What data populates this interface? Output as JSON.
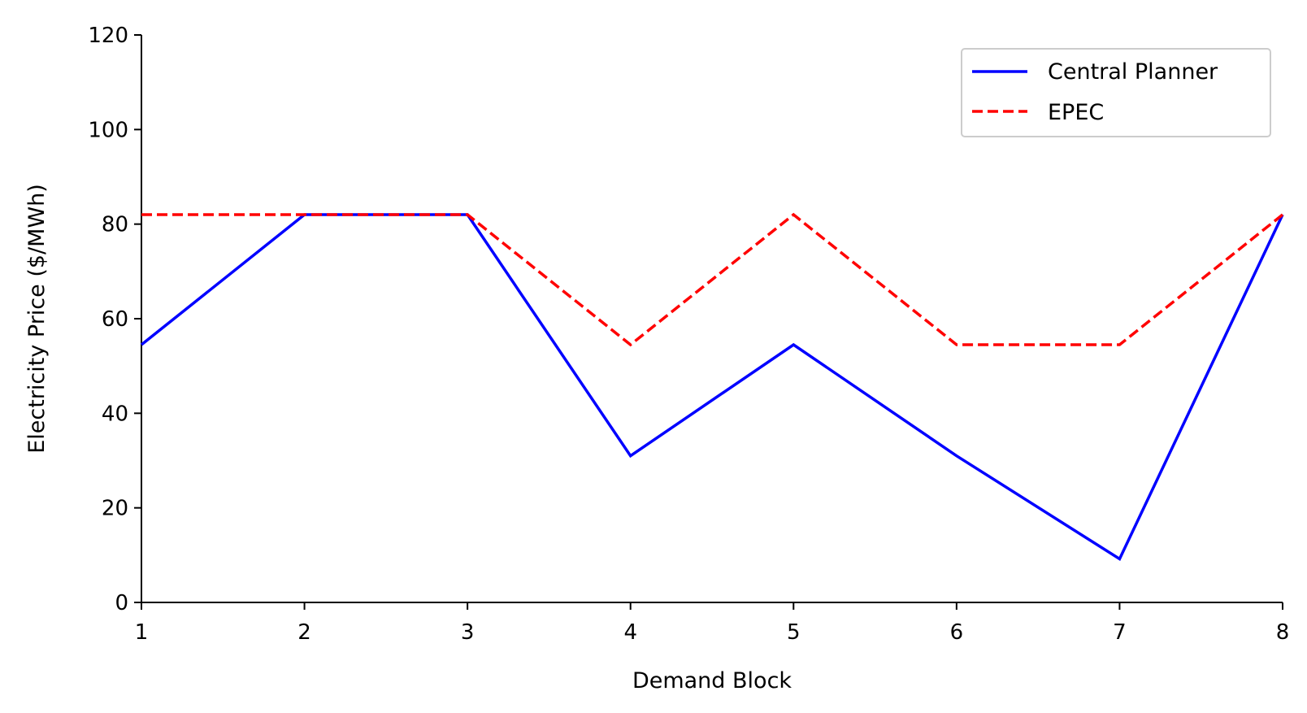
{
  "chart_data": {
    "type": "line",
    "x": [
      1,
      2,
      3,
      4,
      5,
      6,
      7,
      8
    ],
    "xlabel": "Demand Block",
    "ylabel": "Electricity Price ($/MWh)",
    "xlim": [
      1,
      8
    ],
    "ylim": [
      0,
      120
    ],
    "xticks": [
      "1",
      "2",
      "3",
      "4",
      "5",
      "6",
      "7",
      "8"
    ],
    "yticks": [
      "0",
      "20",
      "40",
      "60",
      "80",
      "100",
      "120"
    ],
    "grid": false,
    "legend_position": "top-right",
    "series": [
      {
        "name": "Central Planner",
        "values": [
          54.5,
          82,
          82,
          31,
          54.5,
          31,
          9.2,
          82
        ],
        "color": "#0000ff",
        "style": "solid"
      },
      {
        "name": "EPEC",
        "values": [
          82,
          82,
          82,
          54.5,
          82,
          54.5,
          54.5,
          82
        ],
        "color": "#ff0000",
        "style": "dashed"
      }
    ]
  }
}
